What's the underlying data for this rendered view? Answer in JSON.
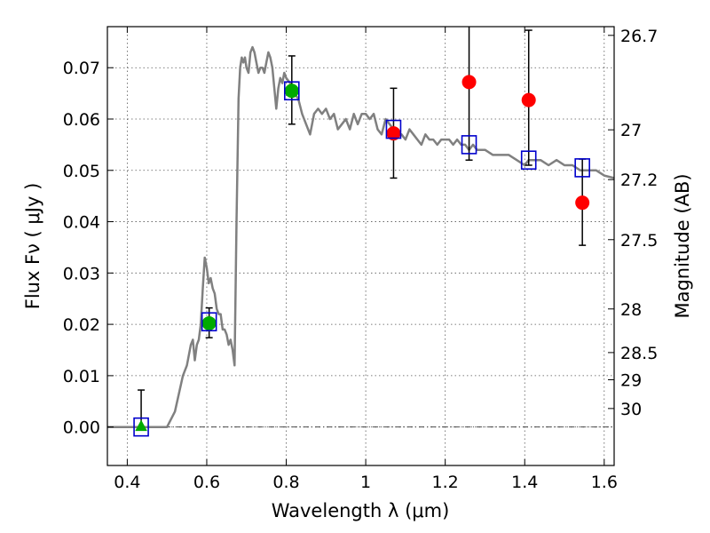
{
  "chart_data": {
    "type": "scatter",
    "title": "",
    "xlabel_text": "Wavelength  λ (μm)",
    "ylabel_text": "Flux  Fν  ( μJy )",
    "y2label": "Magnitude (AB)",
    "xlim": [
      0.35,
      1.625
    ],
    "ylim": [
      -0.0075,
      0.078
    ],
    "grid": true,
    "x_ticks": [
      0.4,
      0.6,
      0.8,
      1.0,
      1.2,
      1.4,
      1.6
    ],
    "x_tick_labels": [
      "0.4",
      "0.6",
      "0.8",
      "1",
      "1.2",
      "1.4",
      "1.6"
    ],
    "y_ticks": [
      0.0,
      0.01,
      0.02,
      0.03,
      0.04,
      0.05,
      0.06,
      0.07
    ],
    "y_tick_labels": [
      "0.00",
      "0.01",
      "0.02",
      "0.03",
      "0.04",
      "0.05",
      "0.06",
      "0.07"
    ],
    "y2_ticks": [
      {
        "label": "26.7",
        "flux": 0.0763
      },
      {
        "label": "27",
        "flux": 0.0579
      },
      {
        "label": "27.2",
        "flux": 0.0482
      },
      {
        "label": "27.5",
        "flux": 0.0365
      },
      {
        "label": "28",
        "flux": 0.023
      },
      {
        "label": "28.5",
        "flux": 0.0145
      },
      {
        "label": "29",
        "flux": 0.0092
      },
      {
        "label": "30",
        "flux": 0.0036
      }
    ],
    "zero_line": 0.0,
    "sed_model": {
      "color": "#808080",
      "x": [
        0.35,
        0.4,
        0.45,
        0.5,
        0.52,
        0.54,
        0.55,
        0.56,
        0.565,
        0.57,
        0.575,
        0.58,
        0.585,
        0.59,
        0.595,
        0.6,
        0.605,
        0.61,
        0.615,
        0.62,
        0.625,
        0.63,
        0.635,
        0.64,
        0.645,
        0.65,
        0.655,
        0.66,
        0.665,
        0.67,
        0.675,
        0.68,
        0.684,
        0.688,
        0.692,
        0.696,
        0.7,
        0.705,
        0.71,
        0.715,
        0.72,
        0.725,
        0.73,
        0.735,
        0.74,
        0.745,
        0.75,
        0.755,
        0.76,
        0.765,
        0.77,
        0.775,
        0.78,
        0.785,
        0.79,
        0.795,
        0.8,
        0.81,
        0.82,
        0.83,
        0.84,
        0.85,
        0.86,
        0.87,
        0.88,
        0.89,
        0.9,
        0.91,
        0.92,
        0.93,
        0.94,
        0.95,
        0.96,
        0.97,
        0.98,
        0.99,
        1.0,
        1.01,
        1.02,
        1.03,
        1.04,
        1.05,
        1.06,
        1.07,
        1.08,
        1.09,
        1.1,
        1.11,
        1.12,
        1.13,
        1.14,
        1.15,
        1.16,
        1.17,
        1.18,
        1.19,
        1.2,
        1.21,
        1.22,
        1.23,
        1.24,
        1.25,
        1.26,
        1.27,
        1.28,
        1.3,
        1.32,
        1.34,
        1.36,
        1.38,
        1.4,
        1.41,
        1.42,
        1.44,
        1.46,
        1.48,
        1.5,
        1.52,
        1.54,
        1.56,
        1.58,
        1.6,
        1.625
      ],
      "y": [
        0.0,
        0.0,
        0.0,
        0.0,
        0.003,
        0.01,
        0.012,
        0.016,
        0.017,
        0.013,
        0.016,
        0.017,
        0.02,
        0.027,
        0.033,
        0.031,
        0.028,
        0.029,
        0.027,
        0.026,
        0.023,
        0.022,
        0.022,
        0.019,
        0.019,
        0.018,
        0.016,
        0.017,
        0.015,
        0.012,
        0.04,
        0.064,
        0.07,
        0.072,
        0.071,
        0.072,
        0.07,
        0.069,
        0.073,
        0.074,
        0.073,
        0.071,
        0.069,
        0.07,
        0.07,
        0.069,
        0.071,
        0.073,
        0.072,
        0.07,
        0.066,
        0.062,
        0.066,
        0.068,
        0.067,
        0.069,
        0.068,
        0.067,
        0.065,
        0.064,
        0.061,
        0.059,
        0.057,
        0.061,
        0.062,
        0.061,
        0.062,
        0.06,
        0.061,
        0.058,
        0.059,
        0.06,
        0.058,
        0.061,
        0.059,
        0.061,
        0.061,
        0.06,
        0.061,
        0.058,
        0.057,
        0.06,
        0.059,
        0.058,
        0.057,
        0.057,
        0.056,
        0.058,
        0.057,
        0.056,
        0.055,
        0.057,
        0.056,
        0.056,
        0.055,
        0.056,
        0.056,
        0.056,
        0.055,
        0.056,
        0.055,
        0.055,
        0.054,
        0.055,
        0.054,
        0.054,
        0.053,
        0.053,
        0.053,
        0.052,
        0.051,
        0.052,
        0.052,
        0.052,
        0.051,
        0.052,
        0.051,
        0.051,
        0.05,
        0.05,
        0.05,
        0.049,
        0.0485
      ]
    },
    "model_photometry": {
      "color": "#0000cc",
      "points": [
        {
          "x": 0.435,
          "y": 0.0
        },
        {
          "x": 0.606,
          "y": 0.0205
        },
        {
          "x": 0.814,
          "y": 0.0655
        },
        {
          "x": 1.07,
          "y": 0.058
        },
        {
          "x": 1.26,
          "y": 0.055
        },
        {
          "x": 1.41,
          "y": 0.052
        },
        {
          "x": 1.545,
          "y": 0.0505
        }
      ]
    },
    "observations": [
      {
        "x": 0.435,
        "y": 0.0,
        "err_low": 0.0,
        "err_high": 0.0072,
        "marker": "triangle",
        "color": "#00aa00"
      },
      {
        "x": 0.606,
        "y": 0.0202,
        "err_low": 0.0028,
        "err_high": 0.003,
        "marker": "circle",
        "color": "#00aa00"
      },
      {
        "x": 0.814,
        "y": 0.0655,
        "err_low": 0.0065,
        "err_high": 0.0068,
        "marker": "circle",
        "color": "#00aa00"
      },
      {
        "x": 1.07,
        "y": 0.0572,
        "err_low": 0.0087,
        "err_high": 0.0088,
        "marker": "circle",
        "color": "#ff0000"
      },
      {
        "x": 1.26,
        "y": 0.0672,
        "err_low": 0.0152,
        "err_high": 0.0118,
        "marker": "circle",
        "color": "#ff0000"
      },
      {
        "x": 1.41,
        "y": 0.0637,
        "err_low": 0.0127,
        "err_high": 0.0136,
        "marker": "circle",
        "color": "#ff0000"
      },
      {
        "x": 1.545,
        "y": 0.0437,
        "err_low": 0.0083,
        "err_high": 0.0085,
        "marker": "circle",
        "color": "#ff0000"
      }
    ]
  }
}
